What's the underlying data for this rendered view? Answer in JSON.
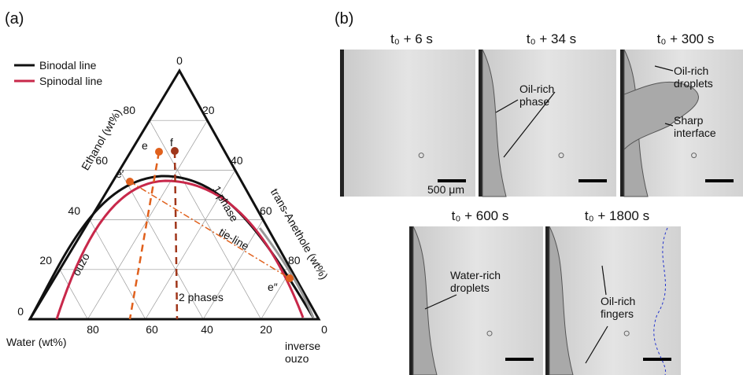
{
  "panel_a": {
    "label": "(a)",
    "legend": [
      "Binodal line",
      "Spinodal line"
    ],
    "axis_titles": {
      "ethanol": "Ethanol (wt%)",
      "anethole": "trans-Anethole (wt%)",
      "water": "Water (wt%)"
    },
    "ticks": {
      "top": [
        0
      ],
      "left": [
        80,
        60,
        40,
        20,
        0
      ],
      "right": [
        20,
        40,
        60,
        80
      ],
      "bottom": [
        80,
        60,
        40,
        20,
        0
      ]
    },
    "annotations": {
      "e": "e",
      "f": "f",
      "e_prime": "e′",
      "e_double": "e″",
      "one_phase": "1 phase",
      "tie_line": "tie-line",
      "ouzo": "ouzo",
      "two_phases": "2 phases",
      "inverse_ouzo": "inverse\nouzo"
    }
  },
  "panel_b": {
    "label": "(b)",
    "times": [
      "t₀ + 6 s",
      "t₀ + 34 s",
      "t₀ + 300 s",
      "t₀ + 600 s",
      "t₀ + 1800 s"
    ],
    "scale_bar": "500 μm",
    "annotations": {
      "oil_rich_phase": "Oil-rich\nphase",
      "oil_rich_droplets": "Oil-rich\ndroplets",
      "sharp_interface": "Sharp\ninterface",
      "water_rich_droplets": "Water-rich\ndroplets",
      "oil_rich_fingers": "Oil-rich\nfingers"
    }
  }
}
